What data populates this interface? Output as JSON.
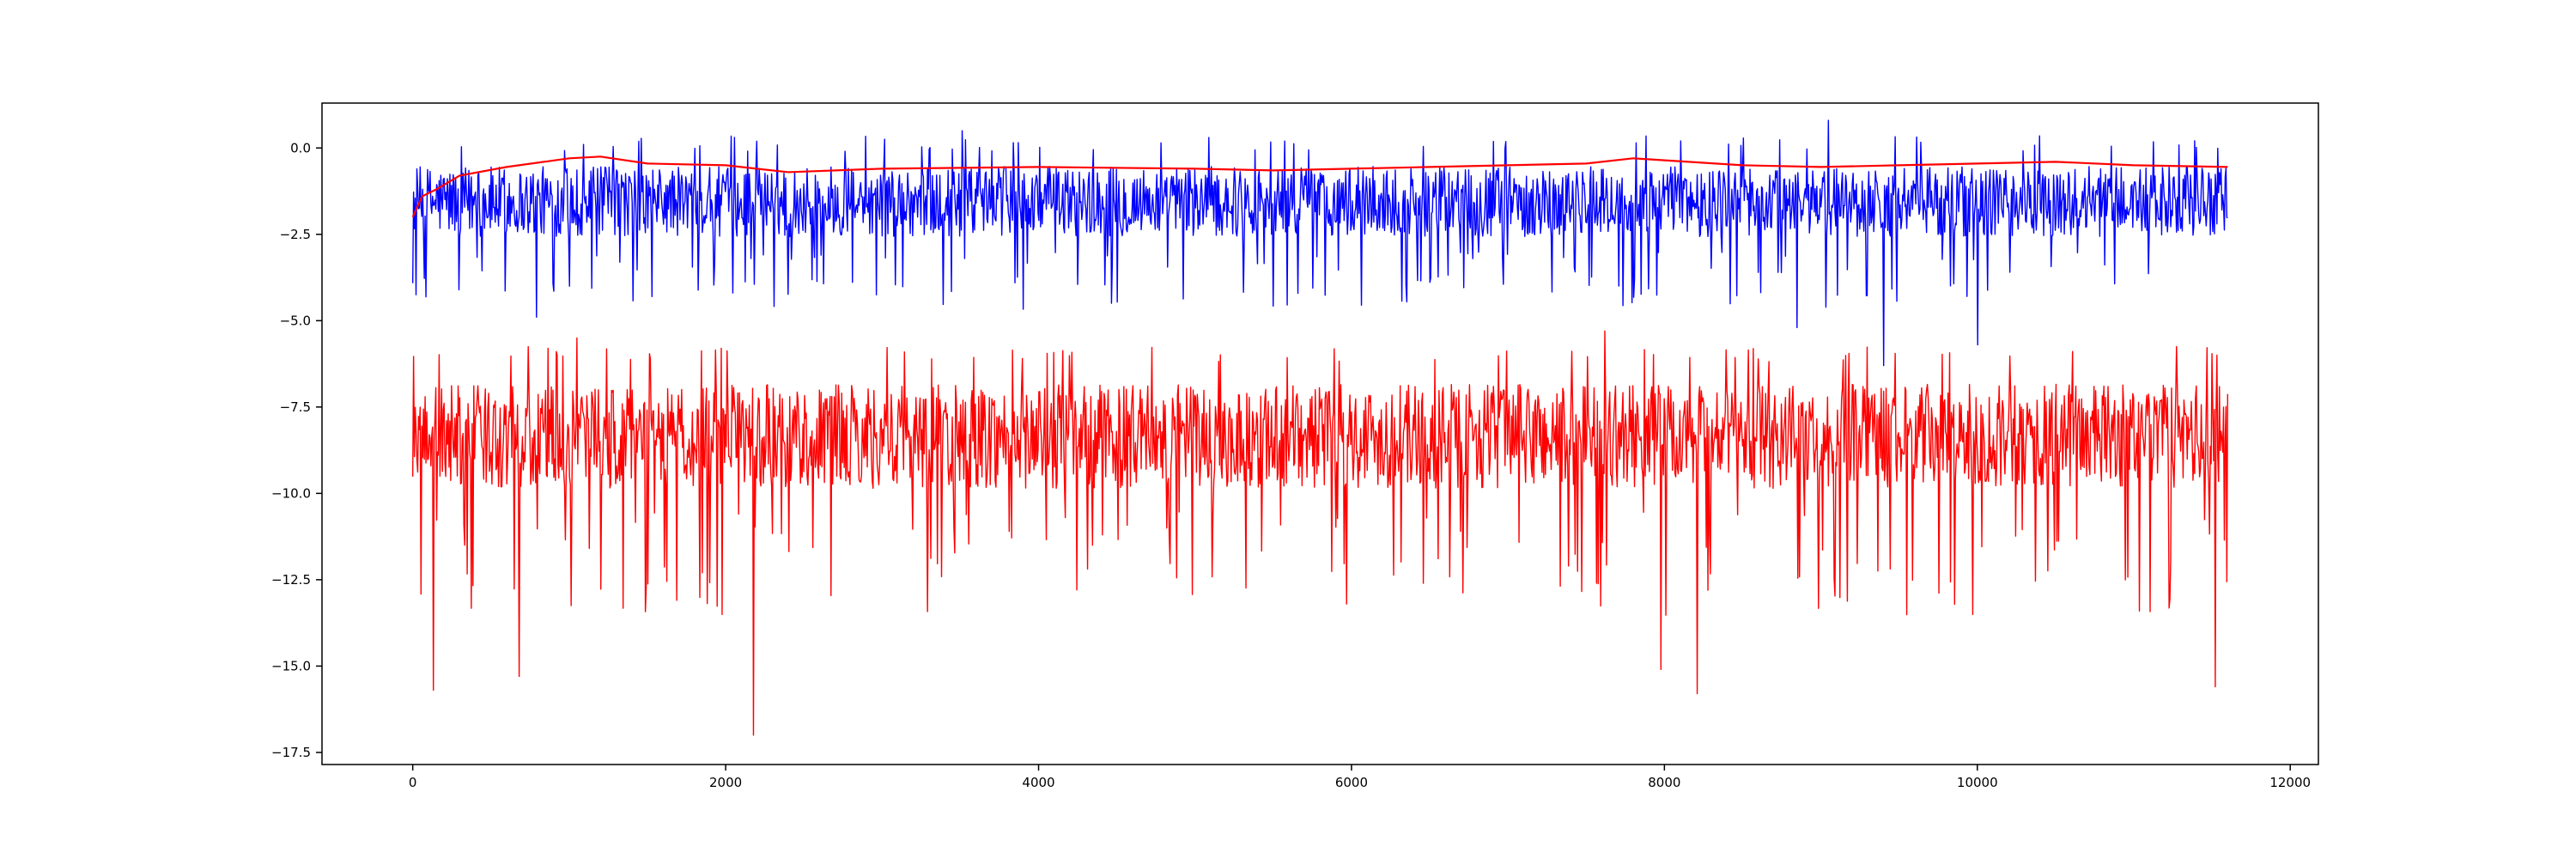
{
  "chart_data": {
    "type": "line",
    "title": "",
    "xlabel": "",
    "ylabel": "",
    "xlim": [
      -580,
      12180
    ],
    "ylim": [
      -17.85,
      1.3
    ],
    "x_ticks": [
      0,
      2000,
      4000,
      6000,
      8000,
      10000,
      12000
    ],
    "x_tick_labels": [
      "0",
      "2000",
      "4000",
      "6000",
      "8000",
      "10000",
      "12000"
    ],
    "y_ticks": [
      0.0,
      -2.5,
      -5.0,
      -7.5,
      -10.0,
      -12.5,
      -15.0,
      -17.5
    ],
    "y_tick_labels": [
      "0.0",
      "−2.5",
      "−5.0",
      "−7.5",
      "−10.0",
      "−12.5",
      "−15.0",
      "−17.5"
    ],
    "grid": false,
    "legend": "none",
    "colors": {
      "upper_noise": "#0000ff",
      "lower_noise": "#ff0000",
      "moving_average": "#ff0000"
    },
    "series": [
      {
        "color": "#0000ff",
        "style": "noisy-line",
        "x_range": [
          0,
          11600
        ],
        "baseline": -1.5,
        "typical_band": [
          -3.0,
          -0.1
        ],
        "max": 0.8,
        "min": -6.3,
        "extremes": [
          {
            "x": 9400,
            "y": -6.3
          },
          {
            "x": 10000,
            "y": -5.7
          },
          {
            "x": 8850,
            "y": -5.2
          },
          {
            "x": 790,
            "y": -4.9
          },
          {
            "x": 9050,
            "y": 0.8
          },
          {
            "x": 3510,
            "y": 0.5
          }
        ]
      },
      {
        "color": "#ff0000",
        "style": "noisy-line",
        "x_range": [
          0,
          11600
        ],
        "baseline": -8.3,
        "typical_band": [
          -10.5,
          -6.2
        ],
        "max": -5.3,
        "min": -17.0,
        "extremes": [
          {
            "x": 2180,
            "y": -17.0
          },
          {
            "x": 130,
            "y": -15.7
          },
          {
            "x": 8210,
            "y": -15.8
          },
          {
            "x": 11520,
            "y": -15.6
          },
          {
            "x": 7980,
            "y": -15.1
          },
          {
            "x": 680,
            "y": -15.3
          },
          {
            "x": 1050,
            "y": -5.5
          },
          {
            "x": 7620,
            "y": -5.3
          }
        ]
      },
      {
        "color": "#ff0000",
        "style": "smooth-line",
        "x": [
          0,
          60,
          150,
          300,
          600,
          1000,
          1200,
          1500,
          2000,
          2400,
          3000,
          4000,
          5000,
          5500,
          6000,
          6500,
          7000,
          7500,
          7800,
          8500,
          9000,
          9500,
          10000,
          10500,
          11000,
          11600
        ],
        "values": [
          -2.0,
          -1.4,
          -1.2,
          -0.8,
          -0.55,
          -0.3,
          -0.25,
          -0.45,
          -0.5,
          -0.7,
          -0.6,
          -0.55,
          -0.6,
          -0.65,
          -0.6,
          -0.55,
          -0.5,
          -0.45,
          -0.3,
          -0.5,
          -0.55,
          -0.5,
          -0.45,
          -0.4,
          -0.5,
          -0.55
        ]
      }
    ]
  }
}
